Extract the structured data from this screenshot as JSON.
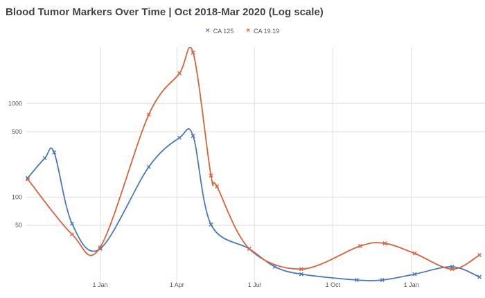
{
  "chart_data": {
    "type": "line",
    "title": "Blood Tumor Markers Over Time | Oct 2018-Mar 2020 (Log scale)",
    "xlabel": "",
    "ylabel": "",
    "y_scale": "log",
    "grid": true,
    "legend_position": "top",
    "xlim": [
      "2018-10-08",
      "2020-03-21"
    ],
    "ylim": [
      13,
      4000
    ],
    "x_ticks": [
      {
        "date": "2019-01-01",
        "label": "1 Jan"
      },
      {
        "date": "2019-04-01",
        "label": "1 Apr"
      },
      {
        "date": "2019-07-01",
        "label": "1 Jul"
      },
      {
        "date": "2019-10-01",
        "label": "1 Oct"
      },
      {
        "date": "2020-01-01",
        "label": "1 Jan"
      }
    ],
    "y_ticks": [
      {
        "value": 50,
        "label": "50"
      },
      {
        "value": 100,
        "label": "100"
      },
      {
        "value": 500,
        "label": "500"
      },
      {
        "value": 1000,
        "label": "1000"
      }
    ],
    "series": [
      {
        "name": "CA 125",
        "color": "#4a78bf",
        "points": [
          {
            "x": "2018-10-08",
            "y": 160
          },
          {
            "x": "2018-10-28",
            "y": 260
          },
          {
            "x": "2018-11-08",
            "y": 300
          },
          {
            "x": "2018-11-29",
            "y": 52
          },
          {
            "x": "2019-01-01",
            "y": 28
          },
          {
            "x": "2019-02-27",
            "y": 210
          },
          {
            "x": "2019-04-04",
            "y": 430
          },
          {
            "x": "2019-04-20",
            "y": 450
          },
          {
            "x": "2019-05-11",
            "y": 51
          },
          {
            "x": "2019-06-25",
            "y": 28
          },
          {
            "x": "2019-07-25",
            "y": 18
          },
          {
            "x": "2019-08-25",
            "y": 15
          },
          {
            "x": "2019-10-29",
            "y": 13
          },
          {
            "x": "2019-11-28",
            "y": 13
          },
          {
            "x": "2020-01-05",
            "y": 15
          },
          {
            "x": "2020-02-18",
            "y": 18
          },
          {
            "x": "2020-03-21",
            "y": 14
          }
        ]
      },
      {
        "name": "CA 19.19",
        "color": "#d9623b",
        "points": [
          {
            "x": "2018-10-08",
            "y": 155
          },
          {
            "x": "2018-11-29",
            "y": 40
          },
          {
            "x": "2019-01-01",
            "y": 29
          },
          {
            "x": "2019-02-27",
            "y": 760
          },
          {
            "x": "2019-04-04",
            "y": 2100
          },
          {
            "x": "2019-04-20",
            "y": 3500
          },
          {
            "x": "2019-05-11",
            "y": 170
          },
          {
            "x": "2019-05-18",
            "y": 130
          },
          {
            "x": "2019-06-25",
            "y": 28
          },
          {
            "x": "2019-08-25",
            "y": 17
          },
          {
            "x": "2019-11-02",
            "y": 30
          },
          {
            "x": "2019-12-01",
            "y": 32
          },
          {
            "x": "2020-01-05",
            "y": 25
          },
          {
            "x": "2020-02-18",
            "y": 17
          },
          {
            "x": "2020-03-21",
            "y": 24
          }
        ]
      }
    ]
  }
}
